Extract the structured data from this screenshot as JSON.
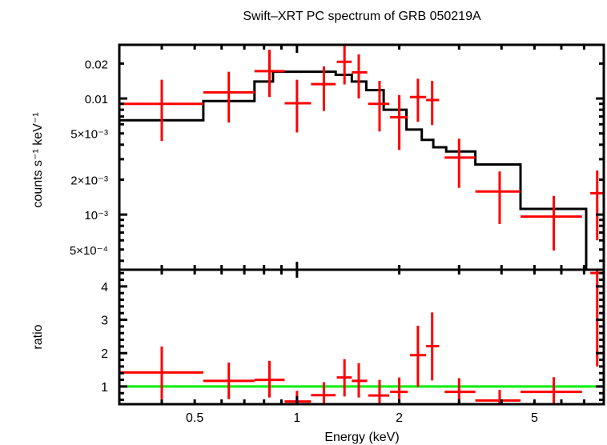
{
  "chart_data": [
    {
      "type": "line",
      "panel": "spectrum",
      "title": "Swift–XRT PC spectrum of GRB 050219A",
      "xlabel": "",
      "ylabel": "counts s⁻¹ keV⁻¹",
      "xscale": "log",
      "yscale": "log",
      "xlim": [
        0.3,
        8.0
      ],
      "ylim": [
        0.000335,
        0.029
      ],
      "yticks": [
        {
          "value": 0.02,
          "label": "0.02"
        },
        {
          "value": 0.01,
          "label": "0.01"
        },
        {
          "value": 0.005,
          "label": "5×10⁻³"
        },
        {
          "value": 0.002,
          "label": "2×10⁻³"
        },
        {
          "value": 0.001,
          "label": "10⁻³"
        },
        {
          "value": 0.0005,
          "label": "5×10⁻⁴"
        }
      ],
      "series": [
        {
          "name": "data",
          "color": "#ff0000",
          "style": "crosses",
          "points": [
            {
              "x": 0.4,
              "xlo": 0.3,
              "xhi": 0.53,
              "y": 0.009,
              "ylo": 0.0043,
              "yhi": 0.0145
            },
            {
              "x": 0.63,
              "xlo": 0.53,
              "xhi": 0.75,
              "y": 0.0113,
              "ylo": 0.0062,
              "yhi": 0.017
            },
            {
              "x": 0.83,
              "xlo": 0.75,
              "xhi": 0.92,
              "y": 0.0172,
              "ylo": 0.0103,
              "yhi": 0.0263
            },
            {
              "x": 1.0,
              "xlo": 0.92,
              "xhi": 1.1,
              "y": 0.0091,
              "ylo": 0.0051,
              "yhi": 0.0145
            },
            {
              "x": 1.2,
              "xlo": 1.1,
              "xhi": 1.3,
              "y": 0.0133,
              "ylo": 0.0078,
              "yhi": 0.0189
            },
            {
              "x": 1.38,
              "xlo": 1.31,
              "xhi": 1.45,
              "y": 0.0207,
              "ylo": 0.0132,
              "yhi": 0.0285
            },
            {
              "x": 1.52,
              "xlo": 1.45,
              "xhi": 1.61,
              "y": 0.0168,
              "ylo": 0.01,
              "yhi": 0.024
            },
            {
              "x": 1.75,
              "xlo": 1.62,
              "xhi": 1.87,
              "y": 0.009,
              "ylo": 0.0052,
              "yhi": 0.0142
            },
            {
              "x": 2.0,
              "xlo": 1.88,
              "xhi": 2.12,
              "y": 0.0069,
              "ylo": 0.0036,
              "yhi": 0.0107
            },
            {
              "x": 2.27,
              "xlo": 2.15,
              "xhi": 2.4,
              "y": 0.0103,
              "ylo": 0.0063,
              "yhi": 0.0148
            },
            {
              "x": 2.5,
              "xlo": 2.4,
              "xhi": 2.62,
              "y": 0.0097,
              "ylo": 0.0059,
              "yhi": 0.0142
            },
            {
              "x": 3.0,
              "xlo": 2.72,
              "xhi": 3.35,
              "y": 0.0031,
              "ylo": 0.0017,
              "yhi": 0.0045
            },
            {
              "x": 3.95,
              "xlo": 3.35,
              "xhi": 4.55,
              "y": 0.00158,
              "ylo": 0.00083,
              "yhi": 0.00235
            },
            {
              "x": 5.7,
              "xlo": 4.55,
              "xhi": 6.9,
              "y": 0.00096,
              "ylo": 0.00049,
              "yhi": 0.00145
            },
            {
              "x": 7.65,
              "xlo": 7.3,
              "xhi": 8.0,
              "y": 0.00153,
              "ylo": 0.0006,
              "yhi": 0.0024
            }
          ]
        },
        {
          "name": "model",
          "color": "#000000",
          "style": "step",
          "steps": [
            {
              "xlo": 0.3,
              "xhi": 0.53,
              "y": 0.0065
            },
            {
              "xlo": 0.53,
              "xhi": 0.75,
              "y": 0.0095
            },
            {
              "xlo": 0.75,
              "xhi": 0.85,
              "y": 0.014
            },
            {
              "xlo": 0.85,
              "xhi": 1.1,
              "y": 0.017
            },
            {
              "xlo": 1.1,
              "xhi": 1.3,
              "y": 0.017
            },
            {
              "xlo": 1.3,
              "xhi": 1.45,
              "y": 0.016
            },
            {
              "xlo": 1.45,
              "xhi": 1.6,
              "y": 0.014
            },
            {
              "xlo": 1.6,
              "xhi": 1.8,
              "y": 0.0118
            },
            {
              "xlo": 1.8,
              "xhi": 2.1,
              "y": 0.008
            },
            {
              "xlo": 2.1,
              "xhi": 2.33,
              "y": 0.0054
            },
            {
              "xlo": 2.33,
              "xhi": 2.52,
              "y": 0.0044
            },
            {
              "xlo": 2.52,
              "xhi": 2.75,
              "y": 0.0038
            },
            {
              "xlo": 2.75,
              "xhi": 3.35,
              "y": 0.0035
            },
            {
              "xlo": 3.35,
              "xhi": 4.55,
              "y": 0.0027
            },
            {
              "xlo": 4.55,
              "xhi": 7.1,
              "y": 0.00112
            },
            {
              "xlo": 7.1,
              "xhi": 7.3,
              "y": 0.000335
            }
          ]
        }
      ]
    },
    {
      "type": "scatter",
      "panel": "ratio",
      "xlabel": "Energy (keV)",
      "ylabel": "ratio",
      "xscale": "log",
      "yscale": "linear",
      "xlim": [
        0.3,
        8.0
      ],
      "ylim": [
        0.47,
        4.5
      ],
      "xticks": [
        {
          "value": 0.5,
          "label": "0.5"
        },
        {
          "value": 1,
          "label": "1"
        },
        {
          "value": 2,
          "label": "2"
        },
        {
          "value": 5,
          "label": "5"
        }
      ],
      "yticks": [
        {
          "value": 1,
          "label": "1"
        },
        {
          "value": 2,
          "label": "2"
        },
        {
          "value": 3,
          "label": "3"
        },
        {
          "value": 4,
          "label": "4"
        }
      ],
      "reference_line": {
        "y": 1,
        "color": "#00ee00"
      },
      "series": [
        {
          "name": "ratio",
          "color": "#ff0000",
          "points": [
            {
              "x": 0.4,
              "xlo": 0.3,
              "xhi": 0.53,
              "y": 1.42,
              "ylo": 0.62,
              "yhi": 2.2
            },
            {
              "x": 0.63,
              "xlo": 0.53,
              "xhi": 0.75,
              "y": 1.17,
              "ylo": 0.62,
              "yhi": 1.72
            },
            {
              "x": 0.83,
              "xlo": 0.75,
              "xhi": 0.92,
              "y": 1.2,
              "ylo": 0.67,
              "yhi": 1.77
            },
            {
              "x": 1.0,
              "xlo": 0.92,
              "xhi": 1.1,
              "y": 0.55,
              "ylo": 0.47,
              "yhi": 0.87
            },
            {
              "x": 1.2,
              "xlo": 1.1,
              "xhi": 1.3,
              "y": 0.74,
              "ylo": 0.47,
              "yhi": 1.13
            },
            {
              "x": 1.38,
              "xlo": 1.31,
              "xhi": 1.45,
              "y": 1.27,
              "ylo": 0.7,
              "yhi": 1.82
            },
            {
              "x": 1.52,
              "xlo": 1.45,
              "xhi": 1.61,
              "y": 1.17,
              "ylo": 0.67,
              "yhi": 1.7
            },
            {
              "x": 1.75,
              "xlo": 1.62,
              "xhi": 1.87,
              "y": 0.73,
              "ylo": 0.47,
              "yhi": 1.2
            },
            {
              "x": 2.0,
              "xlo": 1.88,
              "xhi": 2.12,
              "y": 0.84,
              "ylo": 0.47,
              "yhi": 1.27
            },
            {
              "x": 2.27,
              "xlo": 2.15,
              "xhi": 2.4,
              "y": 1.94,
              "ylo": 0.99,
              "yhi": 2.82
            },
            {
              "x": 2.5,
              "xlo": 2.4,
              "xhi": 2.62,
              "y": 2.21,
              "ylo": 1.18,
              "yhi": 3.22
            },
            {
              "x": 3.0,
              "xlo": 2.72,
              "xhi": 3.35,
              "y": 0.84,
              "ylo": 0.47,
              "yhi": 1.25
            },
            {
              "x": 3.95,
              "xlo": 3.35,
              "xhi": 4.55,
              "y": 0.58,
              "ylo": 0.47,
              "yhi": 0.9
            },
            {
              "x": 5.7,
              "xlo": 4.55,
              "xhi": 6.9,
              "y": 0.84,
              "ylo": 0.47,
              "yhi": 1.28
            },
            {
              "x": 7.65,
              "xlo": 7.3,
              "xhi": 8.0,
              "y": 4.4,
              "ylo": 1.6,
              "yhi": 4.5
            }
          ]
        }
      ]
    }
  ]
}
